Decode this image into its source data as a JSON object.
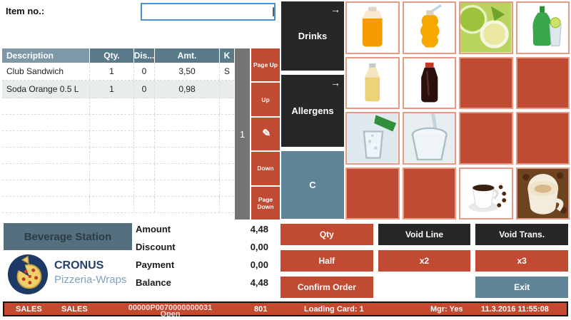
{
  "header": {
    "item_no_label": "Item no.:",
    "item_no_value": "",
    "keyboard_icon": "keyboard-icon"
  },
  "table": {
    "columns": {
      "description": "Description",
      "qty": "Qty.",
      "dis": "Dis...",
      "amt": "Amt.",
      "k": "K"
    },
    "rows": [
      {
        "description": "Club Sandwich",
        "qty": "1",
        "dis": "0",
        "amt": "3,50",
        "k": "S"
      },
      {
        "description": "Soda Orange 0.5 L",
        "qty": "1",
        "dis": "0",
        "amt": "0,98",
        "k": ""
      }
    ],
    "empty_row_count": 7
  },
  "scrollbar": {
    "page_indicator": "1"
  },
  "nav": {
    "page_up": "Page Up",
    "up": "Up",
    "pen_icon_glyph": "✎",
    "down": "Down",
    "page_down": "Page Down"
  },
  "categories": {
    "arrow_glyph": "→",
    "drinks": "Drinks",
    "allergens": "Allergens",
    "c": "C"
  },
  "product_grid": {
    "tiles": [
      {
        "type": "image",
        "image": "orange-juice-bottle"
      },
      {
        "type": "image",
        "image": "orange-drink-straw"
      },
      {
        "type": "image",
        "image": "lime-cocktail"
      },
      {
        "type": "image",
        "image": "green-bottle-glass"
      },
      {
        "type": "image",
        "image": "lemonade-bottle"
      },
      {
        "type": "image",
        "image": "cola-bottle"
      },
      {
        "type": "empty"
      },
      {
        "type": "empty"
      },
      {
        "type": "image",
        "image": "water-pour"
      },
      {
        "type": "image",
        "image": "water-glass"
      },
      {
        "type": "empty"
      },
      {
        "type": "empty"
      },
      {
        "type": "empty"
      },
      {
        "type": "empty"
      },
      {
        "type": "image",
        "image": "espresso-cup"
      },
      {
        "type": "image",
        "image": "cappuccino-cup"
      }
    ]
  },
  "station": {
    "label": "Beverage Station"
  },
  "brand": {
    "name": "CRONUS",
    "tagline": "Pizzeria-Wraps"
  },
  "totals": [
    {
      "label": "Amount",
      "value": "4,48"
    },
    {
      "label": "Discount",
      "value": "0,00"
    },
    {
      "label": "Payment",
      "value": "0,00"
    },
    {
      "label": "Balance",
      "value": "4,48"
    }
  ],
  "actions": {
    "qty": "Qty",
    "void_line": "Void Line",
    "void_trans": "Void Trans.",
    "half": "Half",
    "x2": "x2",
    "x3": "x3",
    "confirm_order": "Confirm Order",
    "exit": "Exit"
  },
  "status_bar": {
    "store": "SALES",
    "pos": "SALES",
    "receipt_no": "00000P0070000000031",
    "receipt_state": "Open",
    "terminal": "801",
    "loading_card": "Loading Card: 1",
    "manager": "Mgr: Yes",
    "datetime": "11.3.2016 11:55:08"
  },
  "colors": {
    "accent_red": "#C14A33",
    "tile_border": "#E59B86",
    "dark_button": "#272727",
    "slate_button": "#5E8496",
    "station_bg": "#54707E",
    "table_header_dark": "#5A7989",
    "table_header_light": "#7E98A7",
    "scrollbar_gray": "#747474",
    "input_border_blue": "#4A90D2",
    "logo_navy": "#1D3A66"
  }
}
